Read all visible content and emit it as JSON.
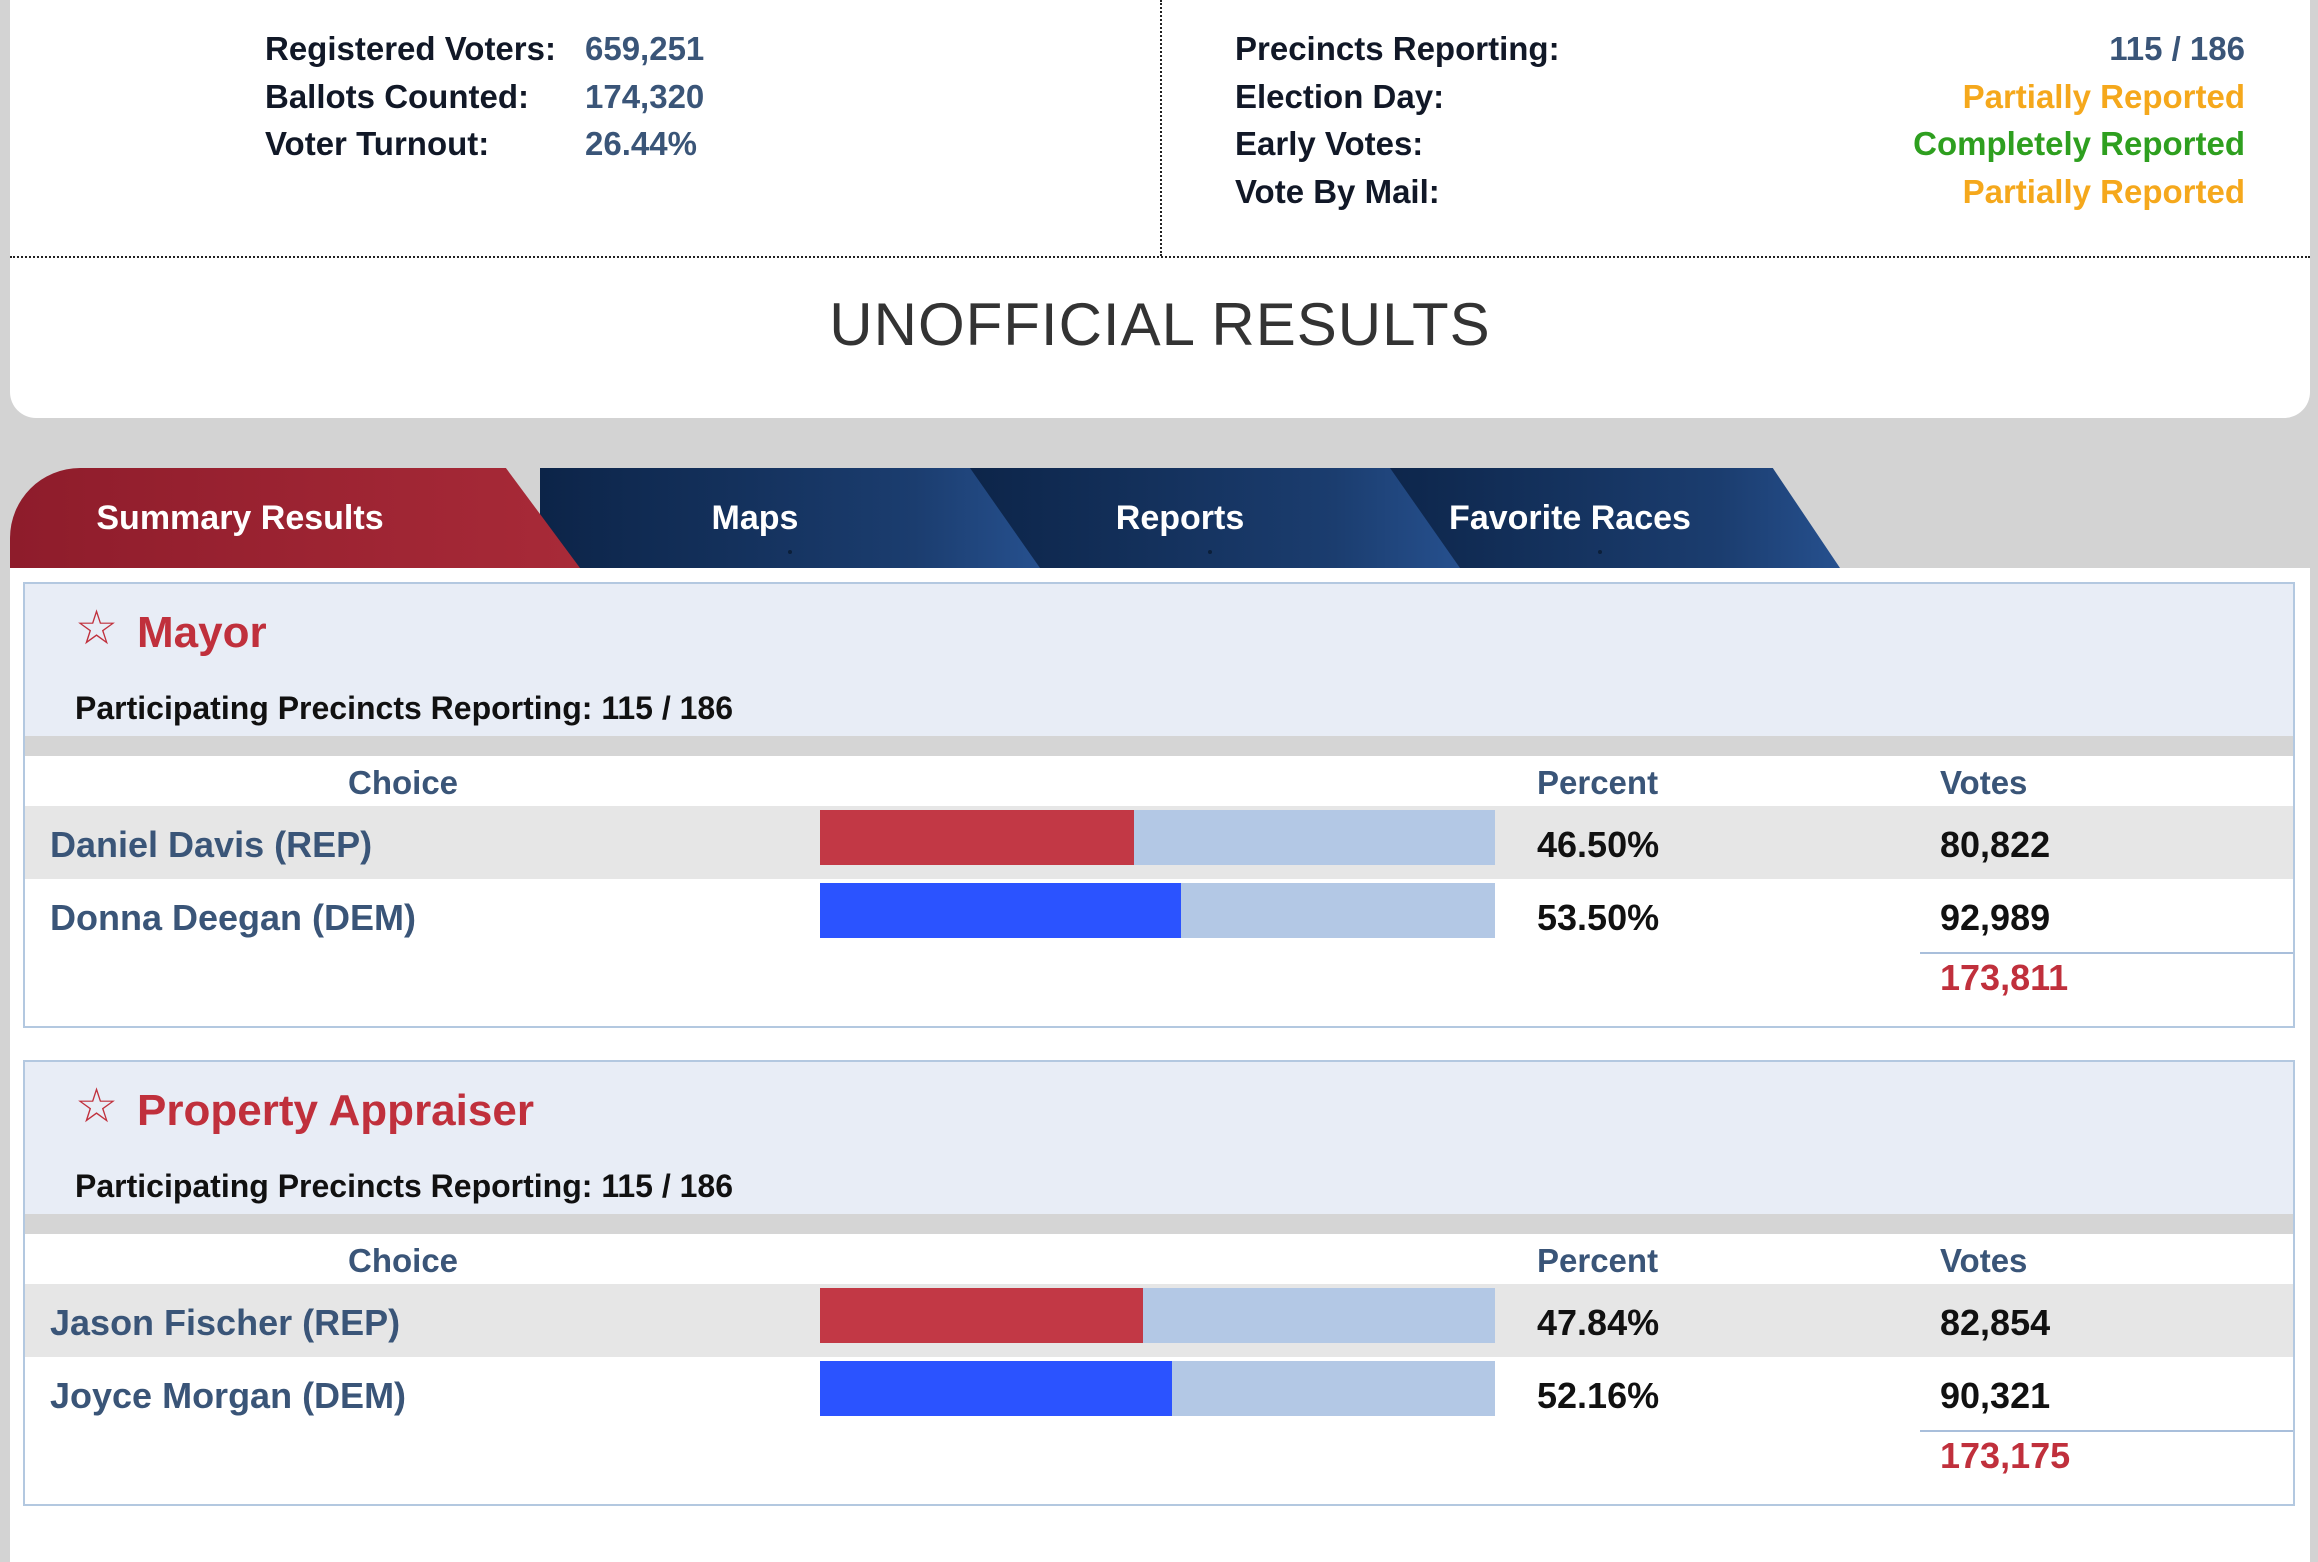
{
  "stats": {
    "left": [
      {
        "label": "Registered Voters:",
        "value": "659,251"
      },
      {
        "label": "Ballots Counted:",
        "value": "174,320"
      },
      {
        "label": "Voter Turnout:",
        "value": "26.44%"
      }
    ],
    "right": [
      {
        "label": "Precincts Reporting:",
        "value": "115 / 186",
        "color": "#3a5578"
      },
      {
        "label": "Election Day:",
        "value": "Partially Reported",
        "color": "#f5a81c"
      },
      {
        "label": "Early Votes:",
        "value": "Completely Reported",
        "color": "#2e9f1f"
      },
      {
        "label": "Vote By Mail:",
        "value": "Partially Reported",
        "color": "#f5a81c"
      }
    ]
  },
  "page_title": "UNOFFICIAL RESULTS",
  "tabs": [
    {
      "label": "Summary Results",
      "active": true
    },
    {
      "label": "Maps"
    },
    {
      "label": "Reports"
    },
    {
      "label": "Favorite Races"
    }
  ],
  "columns": {
    "choice": "Choice",
    "percent": "Percent",
    "votes": "Votes"
  },
  "colors": {
    "rep": "#c23845",
    "dem": "#2b53ff",
    "accent": "#c0303c",
    "bar_bg": "#b3c8e5"
  },
  "races": [
    {
      "star_icon": "star-outline-icon",
      "title": "Mayor",
      "precincts": "Participating Precincts Reporting: 115 / 186",
      "candidates": [
        {
          "name": "Daniel Davis (REP)",
          "party": "rep",
          "percent": "46.50%",
          "percent_value": 46.5,
          "votes": "80,822"
        },
        {
          "name": "Donna Deegan (DEM)",
          "party": "dem",
          "percent": "53.50%",
          "percent_value": 53.5,
          "votes": "92,989"
        }
      ],
      "total": "173,811"
    },
    {
      "star_icon": "star-outline-icon",
      "title": "Property Appraiser",
      "precincts": "Participating Precincts Reporting: 115 / 186",
      "candidates": [
        {
          "name": "Jason Fischer (REP)",
          "party": "rep",
          "percent": "47.84%",
          "percent_value": 47.84,
          "votes": "82,854"
        },
        {
          "name": "Joyce Morgan (DEM)",
          "party": "dem",
          "percent": "52.16%",
          "percent_value": 52.16,
          "votes": "90,321"
        }
      ],
      "total": "173,175"
    }
  ]
}
